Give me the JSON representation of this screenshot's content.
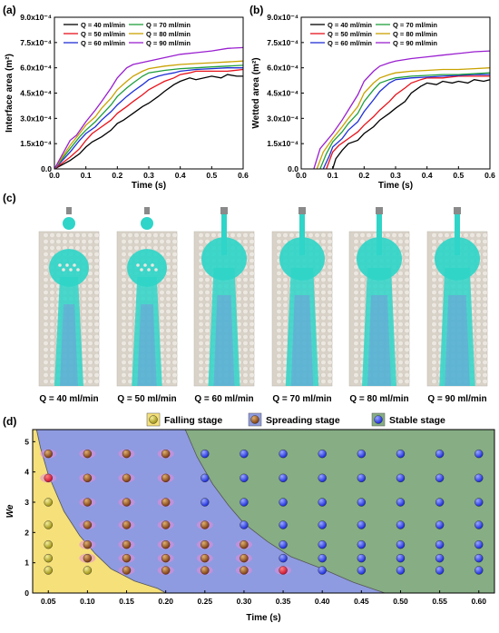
{
  "chart_data": [
    {
      "panel": "(a)",
      "type": "line",
      "xlabel": "Time (s)",
      "ylabel": "Interface area (m²)",
      "xlim": [
        0,
        0.6
      ],
      "ylim": [
        0,
        0.0009
      ],
      "xticks": [
        "0.0",
        "0.1",
        "0.2",
        "0.3",
        "0.4",
        "0.5",
        "0.6"
      ],
      "yticks": [
        "0.0",
        "1.5x10⁻⁴",
        "3.0x10⁻⁴",
        "4.5x10⁻⁴",
        "6.0x10⁻⁴",
        "7.5x10⁻⁴",
        "9.0x10⁻⁴"
      ],
      "legend_position": "top-left",
      "series": [
        {
          "name": "Q = 40 ml/min",
          "color": "#000000",
          "x": [
            0,
            0.05,
            0.08,
            0.1,
            0.12,
            0.15,
            0.18,
            0.2,
            0.22,
            0.25,
            0.28,
            0.3,
            0.33,
            0.35,
            0.38,
            0.4,
            0.43,
            0.45,
            0.5,
            0.53,
            0.55,
            0.58,
            0.6
          ],
          "y": [
            0,
            5e-05,
            9e-05,
            0.00013,
            0.00016,
            0.00019,
            0.00023,
            0.00027,
            0.00029,
            0.00033,
            0.00037,
            0.00039,
            0.00043,
            0.00046,
            0.0005,
            0.00052,
            0.00054,
            0.00053,
            0.00055,
            0.00054,
            0.00056,
            0.00055,
            0.00055
          ]
        },
        {
          "name": "Q = 50 ml/min",
          "color": "#e8121b",
          "x": [
            0,
            0.05,
            0.08,
            0.1,
            0.12,
            0.15,
            0.18,
            0.2,
            0.23,
            0.25,
            0.28,
            0.3,
            0.33,
            0.35,
            0.38,
            0.4,
            0.43,
            0.45,
            0.5,
            0.55,
            0.6
          ],
          "y": [
            0,
            7e-05,
            0.00012,
            0.00017,
            0.00021,
            0.00025,
            0.00029,
            0.00033,
            0.00037,
            0.0004,
            0.00044,
            0.00047,
            0.0005,
            0.00052,
            0.00054,
            0.00056,
            0.00057,
            0.00058,
            0.00058,
            0.00058,
            0.00059
          ]
        },
        {
          "name": "Q = 60 ml/min",
          "color": "#1f2fd6",
          "x": [
            0,
            0.05,
            0.08,
            0.1,
            0.13,
            0.15,
            0.18,
            0.2,
            0.23,
            0.25,
            0.28,
            0.3,
            0.33,
            0.35,
            0.38,
            0.4,
            0.45,
            0.5,
            0.55,
            0.6
          ],
          "y": [
            0,
            0.0001,
            0.00017,
            0.00021,
            0.00025,
            0.00029,
            0.00034,
            0.00038,
            0.00043,
            0.00046,
            0.0005,
            0.00053,
            0.00055,
            0.00056,
            0.00057,
            0.00058,
            0.00059,
            0.000595,
            0.0006,
            0.0006
          ]
        },
        {
          "name": "Q = 70 ml/min",
          "color": "#1e9e3c",
          "x": [
            0,
            0.05,
            0.08,
            0.1,
            0.13,
            0.15,
            0.18,
            0.2,
            0.23,
            0.25,
            0.28,
            0.3,
            0.35,
            0.4,
            0.45,
            0.5,
            0.55,
            0.6
          ],
          "y": [
            0,
            0.00012,
            0.00019,
            0.00023,
            0.00028,
            0.00032,
            0.00038,
            0.00043,
            0.00048,
            0.00051,
            0.00055,
            0.00057,
            0.000585,
            0.000595,
            0.0006,
            0.000605,
            0.00061,
            0.000615
          ]
        },
        {
          "name": "Q = 80 ml/min",
          "color": "#c9a200",
          "x": [
            0,
            0.05,
            0.08,
            0.1,
            0.13,
            0.15,
            0.18,
            0.2,
            0.23,
            0.25,
            0.28,
            0.3,
            0.35,
            0.4,
            0.45,
            0.5,
            0.55,
            0.6
          ],
          "y": [
            0,
            0.00014,
            0.00021,
            0.00026,
            0.00031,
            0.00036,
            0.00042,
            0.00047,
            0.00052,
            0.00055,
            0.00058,
            0.000595,
            0.00061,
            0.00062,
            0.000625,
            0.00063,
            0.000635,
            0.00064
          ]
        },
        {
          "name": "Q = 90 ml/min",
          "color": "#9a1fd0",
          "x": [
            0,
            0.05,
            0.07,
            0.1,
            0.13,
            0.15,
            0.18,
            0.2,
            0.23,
            0.25,
            0.3,
            0.35,
            0.4,
            0.45,
            0.5,
            0.55,
            0.6
          ],
          "y": [
            0,
            0.00017,
            0.0002,
            0.00028,
            0.00035,
            0.0004,
            0.00048,
            0.00054,
            0.0006,
            0.00062,
            0.00064,
            0.00066,
            0.00068,
            0.00069,
            0.0007,
            0.000715,
            0.00072
          ]
        }
      ]
    },
    {
      "panel": "(b)",
      "type": "line",
      "xlabel": "Time (s)",
      "ylabel": "Wetted area (m²)",
      "xlim": [
        0,
        0.6
      ],
      "ylim": [
        0,
        0.0009
      ],
      "xticks": [
        "0.0",
        "0.1",
        "0.2",
        "0.3",
        "0.4",
        "0.5",
        "0.6"
      ],
      "yticks": [
        "0.0",
        "1.5x10⁻⁴",
        "3.0x10⁻⁴",
        "4.5x10⁻⁴",
        "6.0x10⁻⁴",
        "7.5x10⁻⁴",
        "9.0x10⁻⁴"
      ],
      "legend_position": "top-left",
      "series": [
        {
          "name": "Q = 40 ml/min",
          "color": "#000000",
          "x": [
            0.1,
            0.11,
            0.13,
            0.15,
            0.18,
            0.2,
            0.23,
            0.25,
            0.28,
            0.3,
            0.33,
            0.35,
            0.38,
            0.4,
            0.43,
            0.45,
            0.48,
            0.5,
            0.53,
            0.55,
            0.58,
            0.6
          ],
          "y": [
            0,
            6e-05,
            0.00011,
            0.00015,
            0.00017,
            0.00021,
            0.00025,
            0.00029,
            0.00033,
            0.00036,
            0.0004,
            0.00045,
            0.00049,
            0.00051,
            0.0005,
            0.00052,
            0.00051,
            0.00052,
            0.00051,
            0.00053,
            0.00052,
            0.00053
          ]
        },
        {
          "name": "Q = 50 ml/min",
          "color": "#e8121b",
          "x": [
            0.08,
            0.1,
            0.12,
            0.15,
            0.18,
            0.2,
            0.23,
            0.25,
            0.28,
            0.3,
            0.33,
            0.35,
            0.38,
            0.4,
            0.45,
            0.5,
            0.55,
            0.6
          ],
          "y": [
            0,
            0.0001,
            0.00014,
            0.00018,
            0.00022,
            0.00026,
            0.00031,
            0.00035,
            0.0004,
            0.00044,
            0.00048,
            0.00051,
            0.00053,
            0.00054,
            0.00054,
            0.00055,
            0.00055,
            0.00055
          ]
        },
        {
          "name": "Q = 60 ml/min",
          "color": "#1f2fd6",
          "x": [
            0.07,
            0.09,
            0.1,
            0.13,
            0.15,
            0.18,
            0.2,
            0.23,
            0.25,
            0.28,
            0.3,
            0.35,
            0.4,
            0.45,
            0.5,
            0.55,
            0.6
          ],
          "y": [
            0,
            8e-05,
            0.00013,
            0.00018,
            0.00023,
            0.00028,
            0.00034,
            0.00041,
            0.00046,
            0.00051,
            0.00053,
            0.00054,
            0.000545,
            0.00055,
            0.000555,
            0.00056,
            0.00056
          ]
        },
        {
          "name": "Q = 70 ml/min",
          "color": "#1e9e3c",
          "x": [
            0.06,
            0.08,
            0.1,
            0.13,
            0.15,
            0.18,
            0.2,
            0.23,
            0.25,
            0.28,
            0.3,
            0.35,
            0.4,
            0.45,
            0.5,
            0.55,
            0.6
          ],
          "y": [
            0,
            9e-05,
            0.00016,
            0.00022,
            0.00027,
            0.00033,
            0.0004,
            0.00047,
            0.00051,
            0.00053,
            0.00054,
            0.00055,
            0.000555,
            0.00056,
            0.00056,
            0.000565,
            0.00057
          ]
        },
        {
          "name": "Q = 80 ml/min",
          "color": "#c9a200",
          "x": [
            0.05,
            0.07,
            0.1,
            0.13,
            0.15,
            0.18,
            0.2,
            0.23,
            0.25,
            0.28,
            0.3,
            0.35,
            0.4,
            0.45,
            0.5,
            0.55,
            0.6
          ],
          "y": [
            0,
            0.0001,
            0.00018,
            0.00025,
            0.0003,
            0.00037,
            0.00045,
            0.00051,
            0.00054,
            0.00056,
            0.00057,
            0.00058,
            0.000585,
            0.00059,
            0.00059,
            0.000595,
            0.0006
          ]
        },
        {
          "name": "Q = 90 ml/min",
          "color": "#9a1fd0",
          "x": [
            0.04,
            0.06,
            0.1,
            0.13,
            0.15,
            0.18,
            0.2,
            0.23,
            0.25,
            0.28,
            0.3,
            0.35,
            0.4,
            0.45,
            0.5,
            0.55,
            0.6
          ],
          "y": [
            0,
            0.00012,
            0.00021,
            0.00029,
            0.00035,
            0.00044,
            0.00052,
            0.00058,
            0.00061,
            0.00063,
            0.00064,
            0.000655,
            0.000665,
            0.000675,
            0.000685,
            0.000695,
            0.0007
          ]
        }
      ]
    },
    {
      "panel": "(d)",
      "type": "scatter",
      "xlabel": "Time (s)",
      "ylabel": "We",
      "xlim": [
        0.03,
        0.62
      ],
      "ylim": [
        0,
        5.4
      ],
      "xticks": [
        "0.05",
        "0.10",
        "0.15",
        "0.20",
        "0.25",
        "0.30",
        "0.35",
        "0.40",
        "0.45",
        "0.50",
        "0.55",
        "0.60"
      ],
      "yticks": [
        "0",
        "1",
        "2",
        "3",
        "4",
        "5"
      ],
      "legend_position": "top",
      "legend": [
        {
          "name": "Falling stage",
          "color": "#f5e07a"
        },
        {
          "name": "Spreading stage",
          "color": "#8e9be0"
        },
        {
          "name": "Stable stage",
          "color": "#86ad84"
        }
      ],
      "regions": {
        "falling_boundary": [
          [
            0.035,
            5.4
          ],
          [
            0.04,
            4.8
          ],
          [
            0.05,
            3.9
          ],
          [
            0.07,
            2.7
          ],
          [
            0.09,
            1.9
          ],
          [
            0.11,
            1.3
          ],
          [
            0.13,
            0.8
          ],
          [
            0.16,
            0.4
          ],
          [
            0.19,
            0.15
          ],
          [
            0.2,
            0
          ]
        ],
        "stable_boundary": [
          [
            0.225,
            5.4
          ],
          [
            0.24,
            4.5
          ],
          [
            0.26,
            3.6
          ],
          [
            0.28,
            2.9
          ],
          [
            0.3,
            2.3
          ],
          [
            0.33,
            1.7
          ],
          [
            0.36,
            1.2
          ],
          [
            0.4,
            0.8
          ],
          [
            0.44,
            0.35
          ],
          [
            0.48,
            0
          ]
        ]
      },
      "we_values": [
        0.75,
        1.15,
        1.6,
        2.25,
        3.0,
        3.8,
        4.6
      ],
      "times": [
        0.05,
        0.1,
        0.15,
        0.2,
        0.25,
        0.3,
        0.35,
        0.4,
        0.45,
        0.5,
        0.55,
        0.6
      ],
      "points": [
        {
          "we": 0.75,
          "stages": [
            "falling",
            "falling",
            "spreading",
            "spreading",
            "spreading",
            "spreading",
            "spreading",
            "stable",
            "stable",
            "stable",
            "stable",
            "stable"
          ]
        },
        {
          "we": 1.15,
          "stages": [
            "falling",
            "spreading",
            "spreading",
            "spreading",
            "spreading",
            "spreading",
            "stable",
            "stable",
            "stable",
            "stable",
            "stable",
            "stable"
          ]
        },
        {
          "we": 1.6,
          "stages": [
            "falling",
            "spreading",
            "spreading",
            "spreading",
            "spreading",
            "spreading",
            "stable",
            "stable",
            "stable",
            "stable",
            "stable",
            "stable"
          ]
        },
        {
          "we": 2.25,
          "stages": [
            "falling",
            "spreading",
            "spreading",
            "spreading",
            "spreading",
            "stable",
            "stable",
            "stable",
            "stable",
            "stable",
            "stable",
            "stable"
          ]
        },
        {
          "we": 3.0,
          "stages": [
            "falling",
            "spreading",
            "spreading",
            "spreading",
            "stable",
            "stable",
            "stable",
            "stable",
            "stable",
            "stable",
            "stable",
            "stable"
          ]
        },
        {
          "we": 3.8,
          "stages": [
            "spreading",
            "spreading",
            "spreading",
            "spreading",
            "stable",
            "stable",
            "stable",
            "stable",
            "stable",
            "stable",
            "stable",
            "stable"
          ]
        },
        {
          "we": 4.6,
          "stages": [
            "spreading",
            "spreading",
            "spreading",
            "spreading",
            "stable",
            "stable",
            "stable",
            "stable",
            "stable",
            "stable",
            "stable",
            "stable"
          ]
        }
      ]
    }
  ],
  "panel_c": {
    "label": "(c)",
    "captions": [
      "Q = 40 ml/min",
      "Q = 50 ml/min",
      "Q = 60 ml/min",
      "Q = 70 ml/min",
      "Q = 80 ml/min",
      "Q = 90 ml/min"
    ]
  },
  "colors": {
    "falling_ball": "#9c8f10",
    "spreading_ball": "#7a3a10",
    "spreading_ball_red": "#c8102e",
    "stable_ball": "#1a2ad6",
    "fluid": "#2fd5c8",
    "substrate": "#d8d2c8"
  }
}
